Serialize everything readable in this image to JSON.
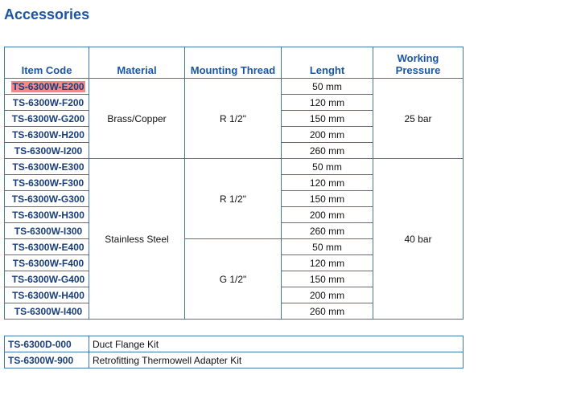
{
  "title": "Accessories",
  "headers": [
    "Item Code",
    "Material",
    "Mounting Thread",
    "Lenght",
    "Working Pressure"
  ],
  "rows": [
    {
      "code": "TS-6300W-E200",
      "length": "50 mm"
    },
    {
      "code": "TS-6300W-F200",
      "length": "120 mm"
    },
    {
      "code": "TS-6300W-G200",
      "length": "150 mm"
    },
    {
      "code": "TS-6300W-H200",
      "length": "200 mm"
    },
    {
      "code": "TS-6300W-I200",
      "length": "260 mm"
    },
    {
      "code": "TS-6300W-E300",
      "length": "50 mm"
    },
    {
      "code": "TS-6300W-F300",
      "length": "120 mm"
    },
    {
      "code": "TS-6300W-G300",
      "length": "150 mm"
    },
    {
      "code": "TS-6300W-H300",
      "length": "200 mm"
    },
    {
      "code": "TS-6300W-I300",
      "length": "260 mm"
    },
    {
      "code": "TS-6300W-E400",
      "length": "50 mm"
    },
    {
      "code": "TS-6300W-F400",
      "length": "120 mm"
    },
    {
      "code": "TS-6300W-G400",
      "length": "150 mm"
    },
    {
      "code": "TS-6300W-H400",
      "length": "200 mm"
    },
    {
      "code": "TS-6300W-I400",
      "length": "260 mm"
    }
  ],
  "groups": {
    "material": [
      "Brass/Copper",
      "Stainless Steel"
    ],
    "thread": [
      "R 1/2\"",
      "R 1/2\"",
      "G 1/2\""
    ],
    "pressure": [
      "25 bar",
      "40 bar"
    ]
  },
  "highlight_color": "#f08a8a",
  "kits": [
    {
      "code": "TS-6300D-000",
      "desc": "Duct Flange Kit"
    },
    {
      "code": "TS-6300W-900",
      "desc": "Retrofitting Thermowell Adapter Kit"
    }
  ]
}
